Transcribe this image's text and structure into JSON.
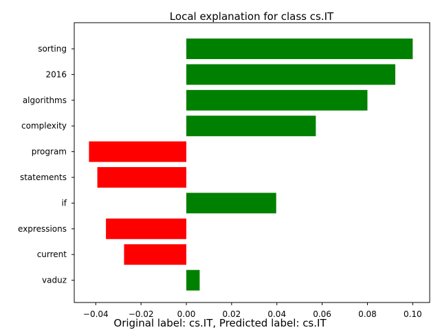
{
  "chart_data": {
    "type": "bar",
    "orientation": "horizontal",
    "title": "Local explanation for class cs.IT",
    "caption": "Original label: cs.IT, Predicted label: cs.IT",
    "categories": [
      "sorting",
      "2016",
      "algorithms",
      "complexity",
      "program",
      "statements",
      "if",
      "expressions",
      "current",
      "vaduz"
    ],
    "values": [
      0.1,
      0.0923,
      0.08,
      0.0572,
      -0.043,
      -0.0393,
      0.0397,
      -0.0355,
      -0.0275,
      0.0059
    ],
    "xlim": [
      -0.0495,
      0.1075
    ],
    "xticks": [
      -0.04,
      -0.02,
      0.0,
      0.02,
      0.04,
      0.06,
      0.08,
      0.1
    ],
    "xtick_labels": [
      "−0.04",
      "−0.02",
      "0.00",
      "0.02",
      "0.04",
      "0.06",
      "0.08",
      "0.10"
    ],
    "positive_color": "#008000",
    "negative_color": "#ff0000",
    "grid": false,
    "xlabel": "",
    "ylabel": ""
  }
}
